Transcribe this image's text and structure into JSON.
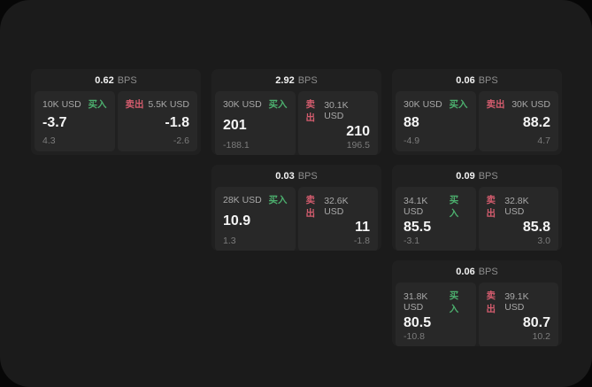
{
  "colors": {
    "buy": "#4caf6e",
    "sell": "#d45c6e",
    "panel_bg": "#1b1b1b",
    "card_bg": "#202020",
    "subpanel_bg": "#282828"
  },
  "cards": [
    {
      "bps": "0.62",
      "unit": "BPS",
      "buy": {
        "amount": "10K USD",
        "side_label": "买入",
        "value": "-3.7",
        "sub": "4.3"
      },
      "sell": {
        "amount": "5.5K USD",
        "side_label": "卖出",
        "value": "-1.8",
        "sub": "-2.6"
      }
    },
    {
      "bps": "2.92",
      "unit": "BPS",
      "buy": {
        "amount": "30K USD",
        "side_label": "买入",
        "value": "201",
        "sub": "-188.1"
      },
      "sell": {
        "amount": "30.1K USD",
        "side_label": "卖出",
        "value": "210",
        "sub": "196.5"
      }
    },
    {
      "bps": "0.06",
      "unit": "BPS",
      "buy": {
        "amount": "30K USD",
        "side_label": "买入",
        "value": "88",
        "sub": "-4.9"
      },
      "sell": {
        "amount": "30K USD",
        "side_label": "卖出",
        "value": "88.2",
        "sub": "4.7"
      }
    },
    {
      "bps": "0.03",
      "unit": "BPS",
      "buy": {
        "amount": "28K USD",
        "side_label": "买入",
        "value": "10.9",
        "sub": "1.3"
      },
      "sell": {
        "amount": "32.6K USD",
        "side_label": "卖出",
        "value": "11",
        "sub": "-1.8"
      }
    },
    {
      "bps": "0.09",
      "unit": "BPS",
      "buy": {
        "amount": "34.1K USD",
        "side_label": "买入",
        "value": "85.5",
        "sub": "-3.1"
      },
      "sell": {
        "amount": "32.8K USD",
        "side_label": "卖出",
        "value": "85.8",
        "sub": "3.0"
      }
    },
    {
      "bps": "0.06",
      "unit": "BPS",
      "buy": {
        "amount": "31.8K USD",
        "side_label": "买入",
        "value": "80.5",
        "sub": "-10.8"
      },
      "sell": {
        "amount": "39.1K USD",
        "side_label": "卖出",
        "value": "80.7",
        "sub": "10.2"
      }
    }
  ]
}
